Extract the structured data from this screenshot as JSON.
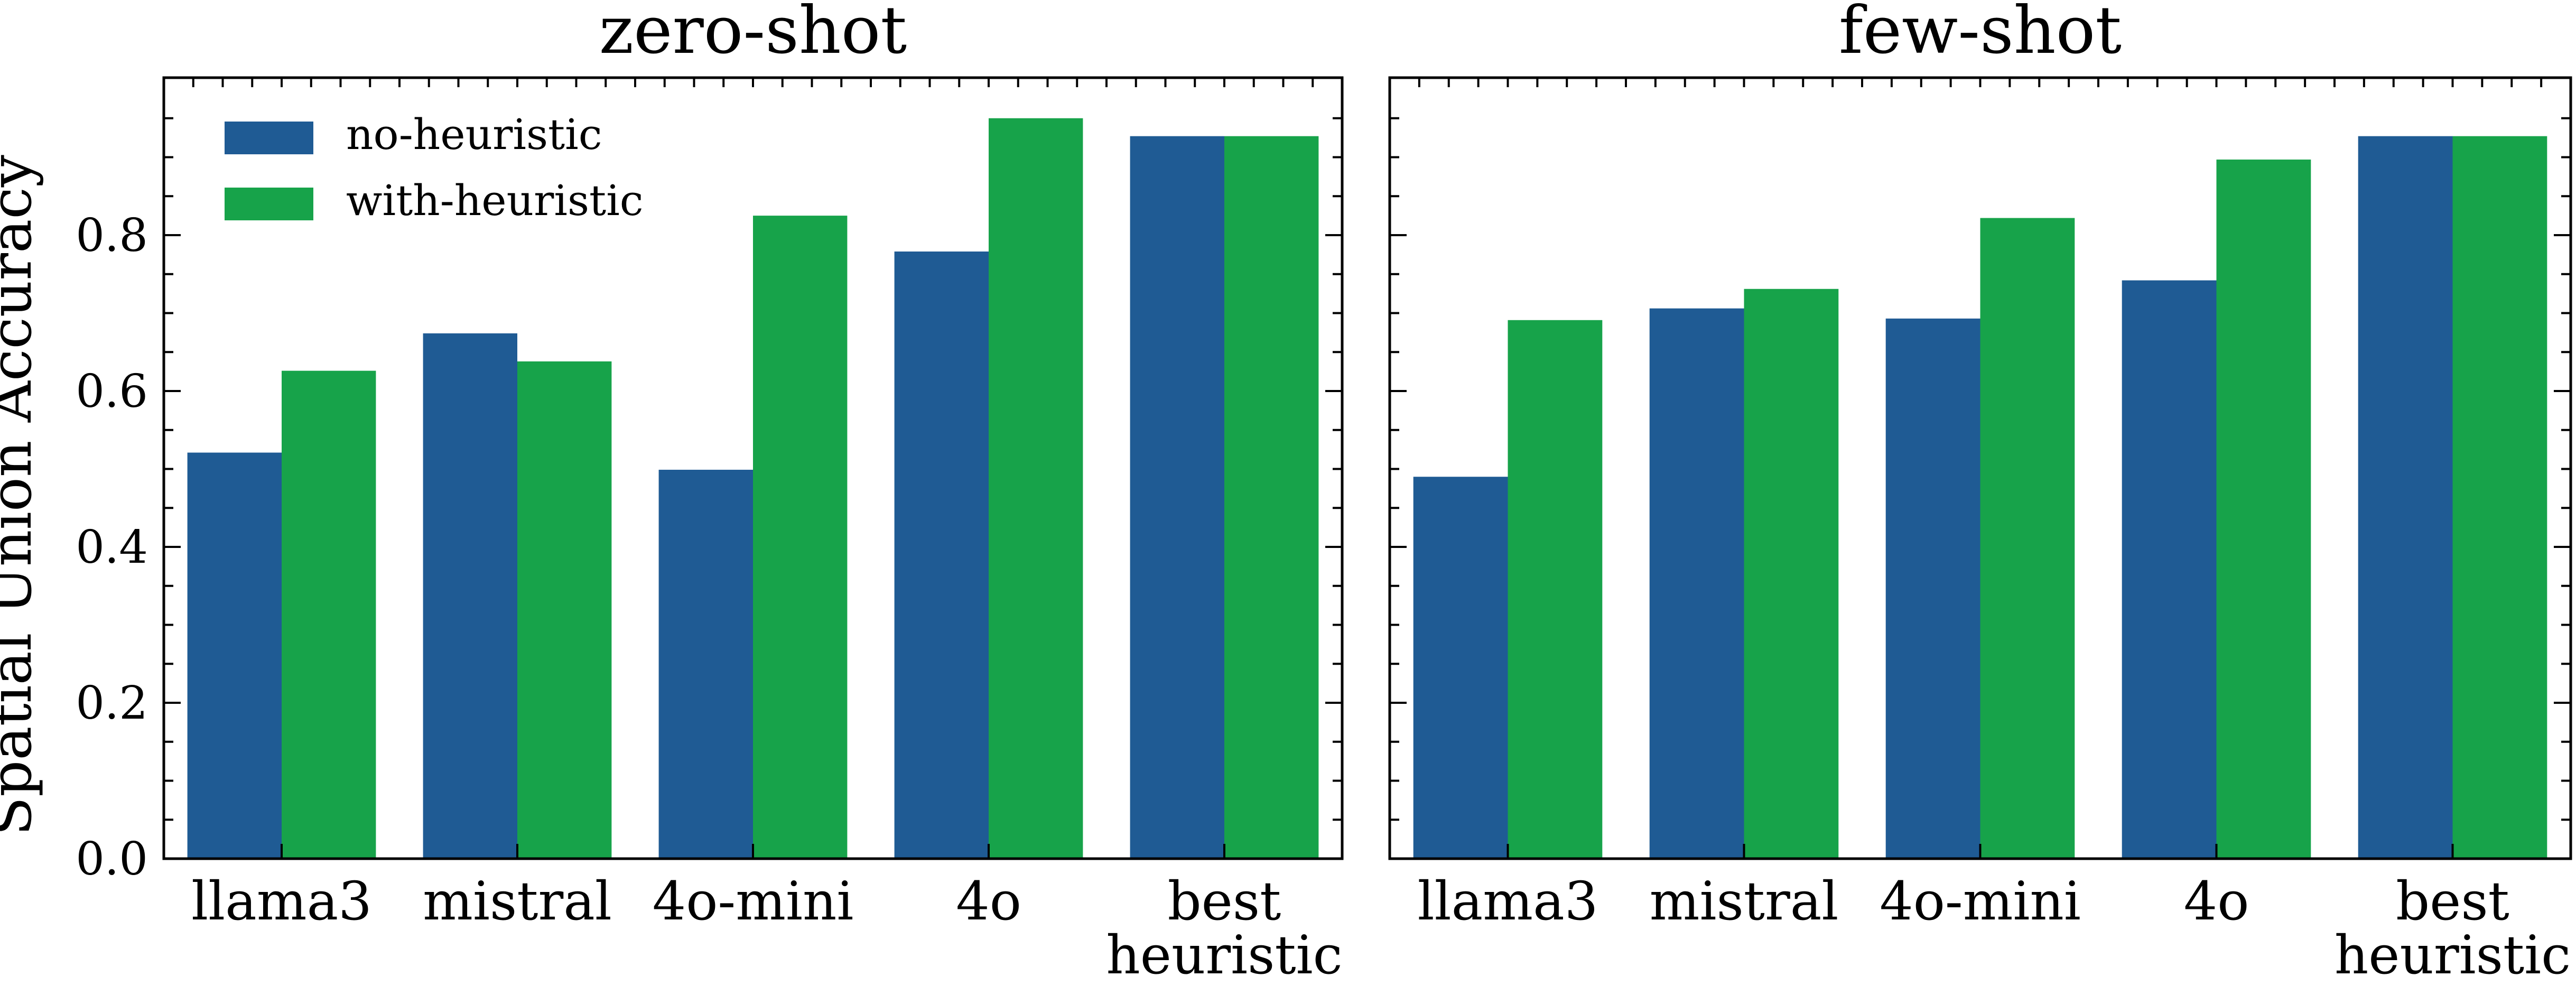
{
  "chart_data": [
    {
      "type": "bar",
      "title": "zero-shot",
      "ylabel": "Spatial Union Accuracy",
      "ylim": [
        0,
        1.0
      ],
      "yticks": [
        "0.0",
        "0.2",
        "0.4",
        "0.6",
        "0.8"
      ],
      "categories": [
        [
          "llama3"
        ],
        [
          "mistral"
        ],
        [
          "4o-mini"
        ],
        [
          "4o"
        ],
        [
          "best",
          "heuristic"
        ]
      ],
      "legend": "top-left",
      "series": [
        {
          "name": "no-heuristic",
          "color": "#1f5b94",
          "values": [
            0.521,
            0.674,
            0.499,
            0.779,
            0.927
          ]
        },
        {
          "name": "with-heuristic",
          "color": "#17a34a",
          "values": [
            0.626,
            0.638,
            0.825,
            0.95,
            0.927
          ]
        }
      ]
    },
    {
      "type": "bar",
      "title": "few-shot",
      "ylim": [
        0,
        1.0
      ],
      "categories": [
        [
          "llama3"
        ],
        [
          "mistral"
        ],
        [
          "4o-mini"
        ],
        [
          "4o"
        ],
        [
          "best",
          "heuristic"
        ]
      ],
      "series": [
        {
          "name": "no-heuristic",
          "color": "#1f5b94",
          "values": [
            0.49,
            0.706,
            0.693,
            0.742,
            0.927
          ]
        },
        {
          "name": "with-heuristic",
          "color": "#17a34a",
          "values": [
            0.691,
            0.731,
            0.822,
            0.897,
            0.927
          ]
        }
      ]
    }
  ]
}
